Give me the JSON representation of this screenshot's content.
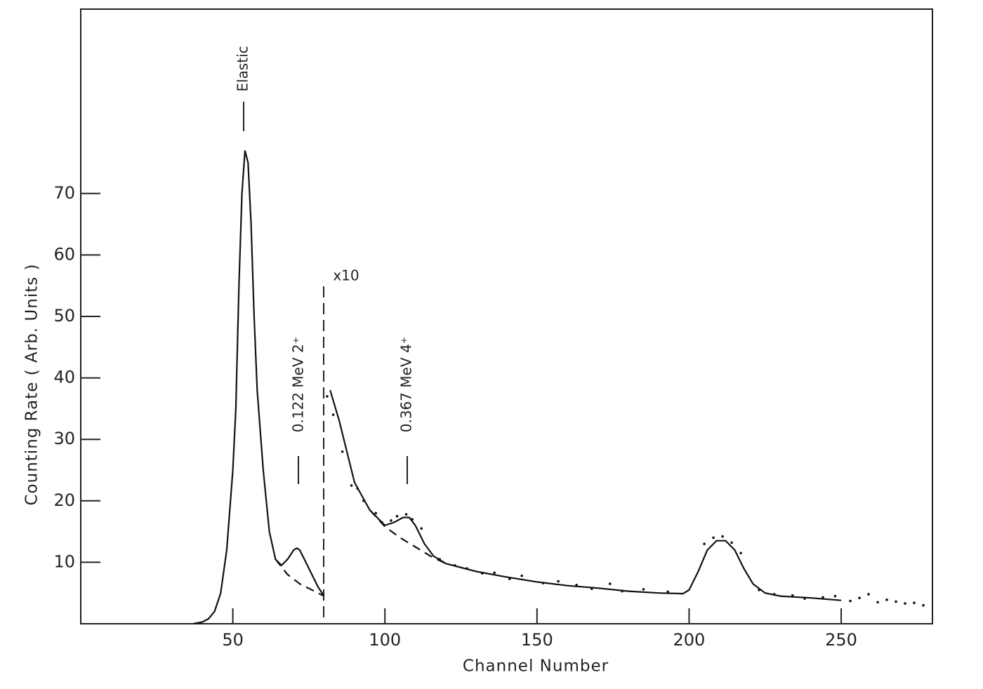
{
  "chart_data": {
    "type": "line",
    "x_label": "Channel Number",
    "y_label": "Counting Rate ( Arb. Units )",
    "xlim": [
      0,
      280
    ],
    "ylim": [
      0,
      100
    ],
    "xticks": [
      50,
      100,
      150,
      200,
      250
    ],
    "yticks": [
      10,
      20,
      30,
      40,
      50,
      60,
      70
    ],
    "annotations": [
      "Elastic",
      "0.122 MeV  2⁺",
      "x10",
      "0.367 MeV  4⁺"
    ],
    "series": [
      {
        "style": "solid",
        "color": "#111",
        "x": [
          37,
          40,
          42,
          44,
          46,
          48,
          50,
          51,
          52,
          53,
          54,
          55,
          56,
          57,
          58,
          60,
          62,
          64,
          66,
          68,
          70,
          71,
          72,
          74,
          76,
          78,
          80,
          80,
          82,
          85,
          88,
          90,
          95,
          100,
          103,
          106,
          108,
          110,
          113,
          116,
          120,
          130,
          140,
          150,
          160,
          170,
          180,
          190,
          198,
          200,
          203,
          206,
          209,
          212,
          215,
          218,
          221,
          225,
          230,
          240,
          250
        ],
        "values": [
          0,
          0.3,
          0.8,
          2,
          5,
          12,
          25,
          35,
          55,
          70,
          77,
          75,
          65,
          50,
          38,
          25,
          15,
          10.5,
          9.5,
          10.5,
          12,
          12.3,
          12,
          10,
          8,
          6,
          4.5,
          null,
          38,
          33,
          27,
          23,
          18.5,
          16,
          16.5,
          17.3,
          17.3,
          16,
          13,
          11,
          9.8,
          8.5,
          7.6,
          6.8,
          6.2,
          5.8,
          5.3,
          5,
          4.9,
          5.5,
          8.5,
          12,
          13.5,
          13.5,
          12,
          9,
          6.5,
          5,
          4.5,
          4.2,
          3.8
        ]
      },
      {
        "style": "dashed",
        "color": "#111",
        "x": [
          64,
          68,
          72,
          76,
          80,
          null,
          95,
          100,
          105,
          110,
          115,
          120
        ],
        "values": [
          10.5,
          8,
          6.5,
          5.5,
          4.5,
          null,
          18.5,
          15.8,
          14,
          12.5,
          11,
          9.8
        ]
      },
      {
        "style": "dots",
        "color": "#111",
        "x": [
          81,
          83,
          86,
          89,
          91,
          93,
          97,
          99,
          102,
          104,
          107,
          109,
          112,
          118,
          123,
          127,
          132,
          136,
          141,
          145,
          152,
          157,
          163,
          168,
          174,
          178,
          185,
          193,
          205,
          208,
          211,
          214,
          217,
          223,
          228,
          234,
          238,
          244,
          248,
          253,
          256,
          259,
          262,
          265,
          268,
          271,
          274,
          277
        ],
        "values": [
          37,
          34,
          28,
          22.5,
          22,
          20,
          18,
          16.5,
          16.8,
          17.5,
          17.8,
          17,
          15.5,
          10.5,
          9.5,
          9,
          8.2,
          8.3,
          7.3,
          7.8,
          6.6,
          6.9,
          6.3,
          5.7,
          6.5,
          5.3,
          5.6,
          5.2,
          13,
          14,
          14.2,
          13.2,
          11.5,
          5.5,
          4.8,
          4.6,
          4.1,
          4.3,
          4.5,
          3.7,
          4.2,
          4.8,
          3.5,
          3.9,
          3.6,
          3.3,
          3.4,
          3.0
        ]
      }
    ]
  }
}
